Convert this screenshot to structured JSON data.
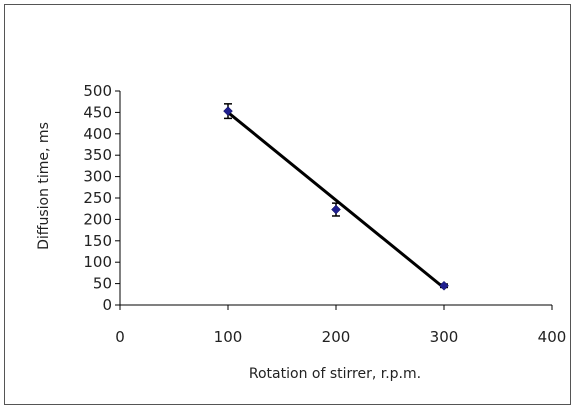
{
  "chart_data": {
    "type": "scatter",
    "title": "",
    "xlabel": "Rotation of stirrer, r.p.m.",
    "ylabel": "Diffusion time, ms",
    "xlim": [
      0,
      400
    ],
    "ylim": [
      0,
      500
    ],
    "x_ticks": [
      0,
      100,
      200,
      300,
      400
    ],
    "y_ticks": [
      0,
      50,
      100,
      150,
      200,
      250,
      300,
      350,
      400,
      450,
      500
    ],
    "grid": false,
    "legend": "none",
    "points": [
      {
        "x": 100,
        "y": 453,
        "err": 17
      },
      {
        "x": 200,
        "y": 223,
        "err": 15
      },
      {
        "x": 300,
        "y": 45,
        "err": 4
      }
    ],
    "trendline": {
      "x": [
        100,
        300
      ],
      "y": [
        450,
        40
      ]
    },
    "colors": {
      "marker": "#1f1f8f",
      "line": "#000000",
      "axis": "#000000"
    }
  }
}
